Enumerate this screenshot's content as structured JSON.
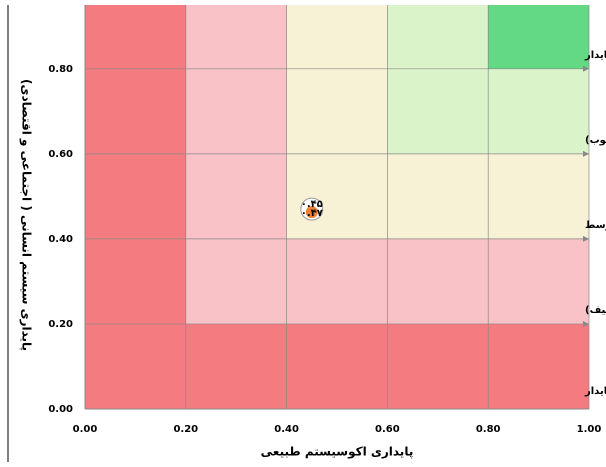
{
  "chart_data": {
    "type": "scatter",
    "x_label": "پایداری اکوسیستم طبیعی",
    "y_label": "پایداری سیستم انسانی ( اجتماعی و اقتصادی)",
    "xlim": [
      0,
      1
    ],
    "ylim": [
      0,
      0.95
    ],
    "xticks": [
      {
        "value": 0,
        "label": "0.00"
      },
      {
        "value": 0.2,
        "label": "0.20"
      },
      {
        "value": 0.4,
        "label": "0.40"
      },
      {
        "value": 0.6,
        "label": "0.60"
      },
      {
        "value": 0.8,
        "label": "0.80"
      },
      {
        "value": 1,
        "label": "1.00"
      }
    ],
    "yticks": [
      {
        "value": 0,
        "label": "0.00"
      },
      {
        "value": 0.2,
        "label": "0.20"
      },
      {
        "value": 0.4,
        "label": "0.40"
      },
      {
        "value": 0.6,
        "label": "0.60"
      },
      {
        "value": 0.8,
        "label": "0.80"
      }
    ],
    "grid": true,
    "zone_colors": [
      "#f47c80",
      "#f8c2c6",
      "#f7f2d6",
      "#dbf3c8",
      "#63d983"
    ],
    "zone_labels": [
      "ناپایدار",
      "ناپایداری بالقوه ( ضعیف)",
      "پایداری متوسط",
      "پایداری بالقوه ( خوب)",
      "پایدار"
    ],
    "series": [
      {
        "color": "#f08030",
        "x": [
          0.45
        ],
        "values": [
          0.47
        ],
        "x_labels": [
          "۰.۴۵"
        ],
        "value_labels": [
          "۰.۴۷"
        ]
      }
    ]
  }
}
